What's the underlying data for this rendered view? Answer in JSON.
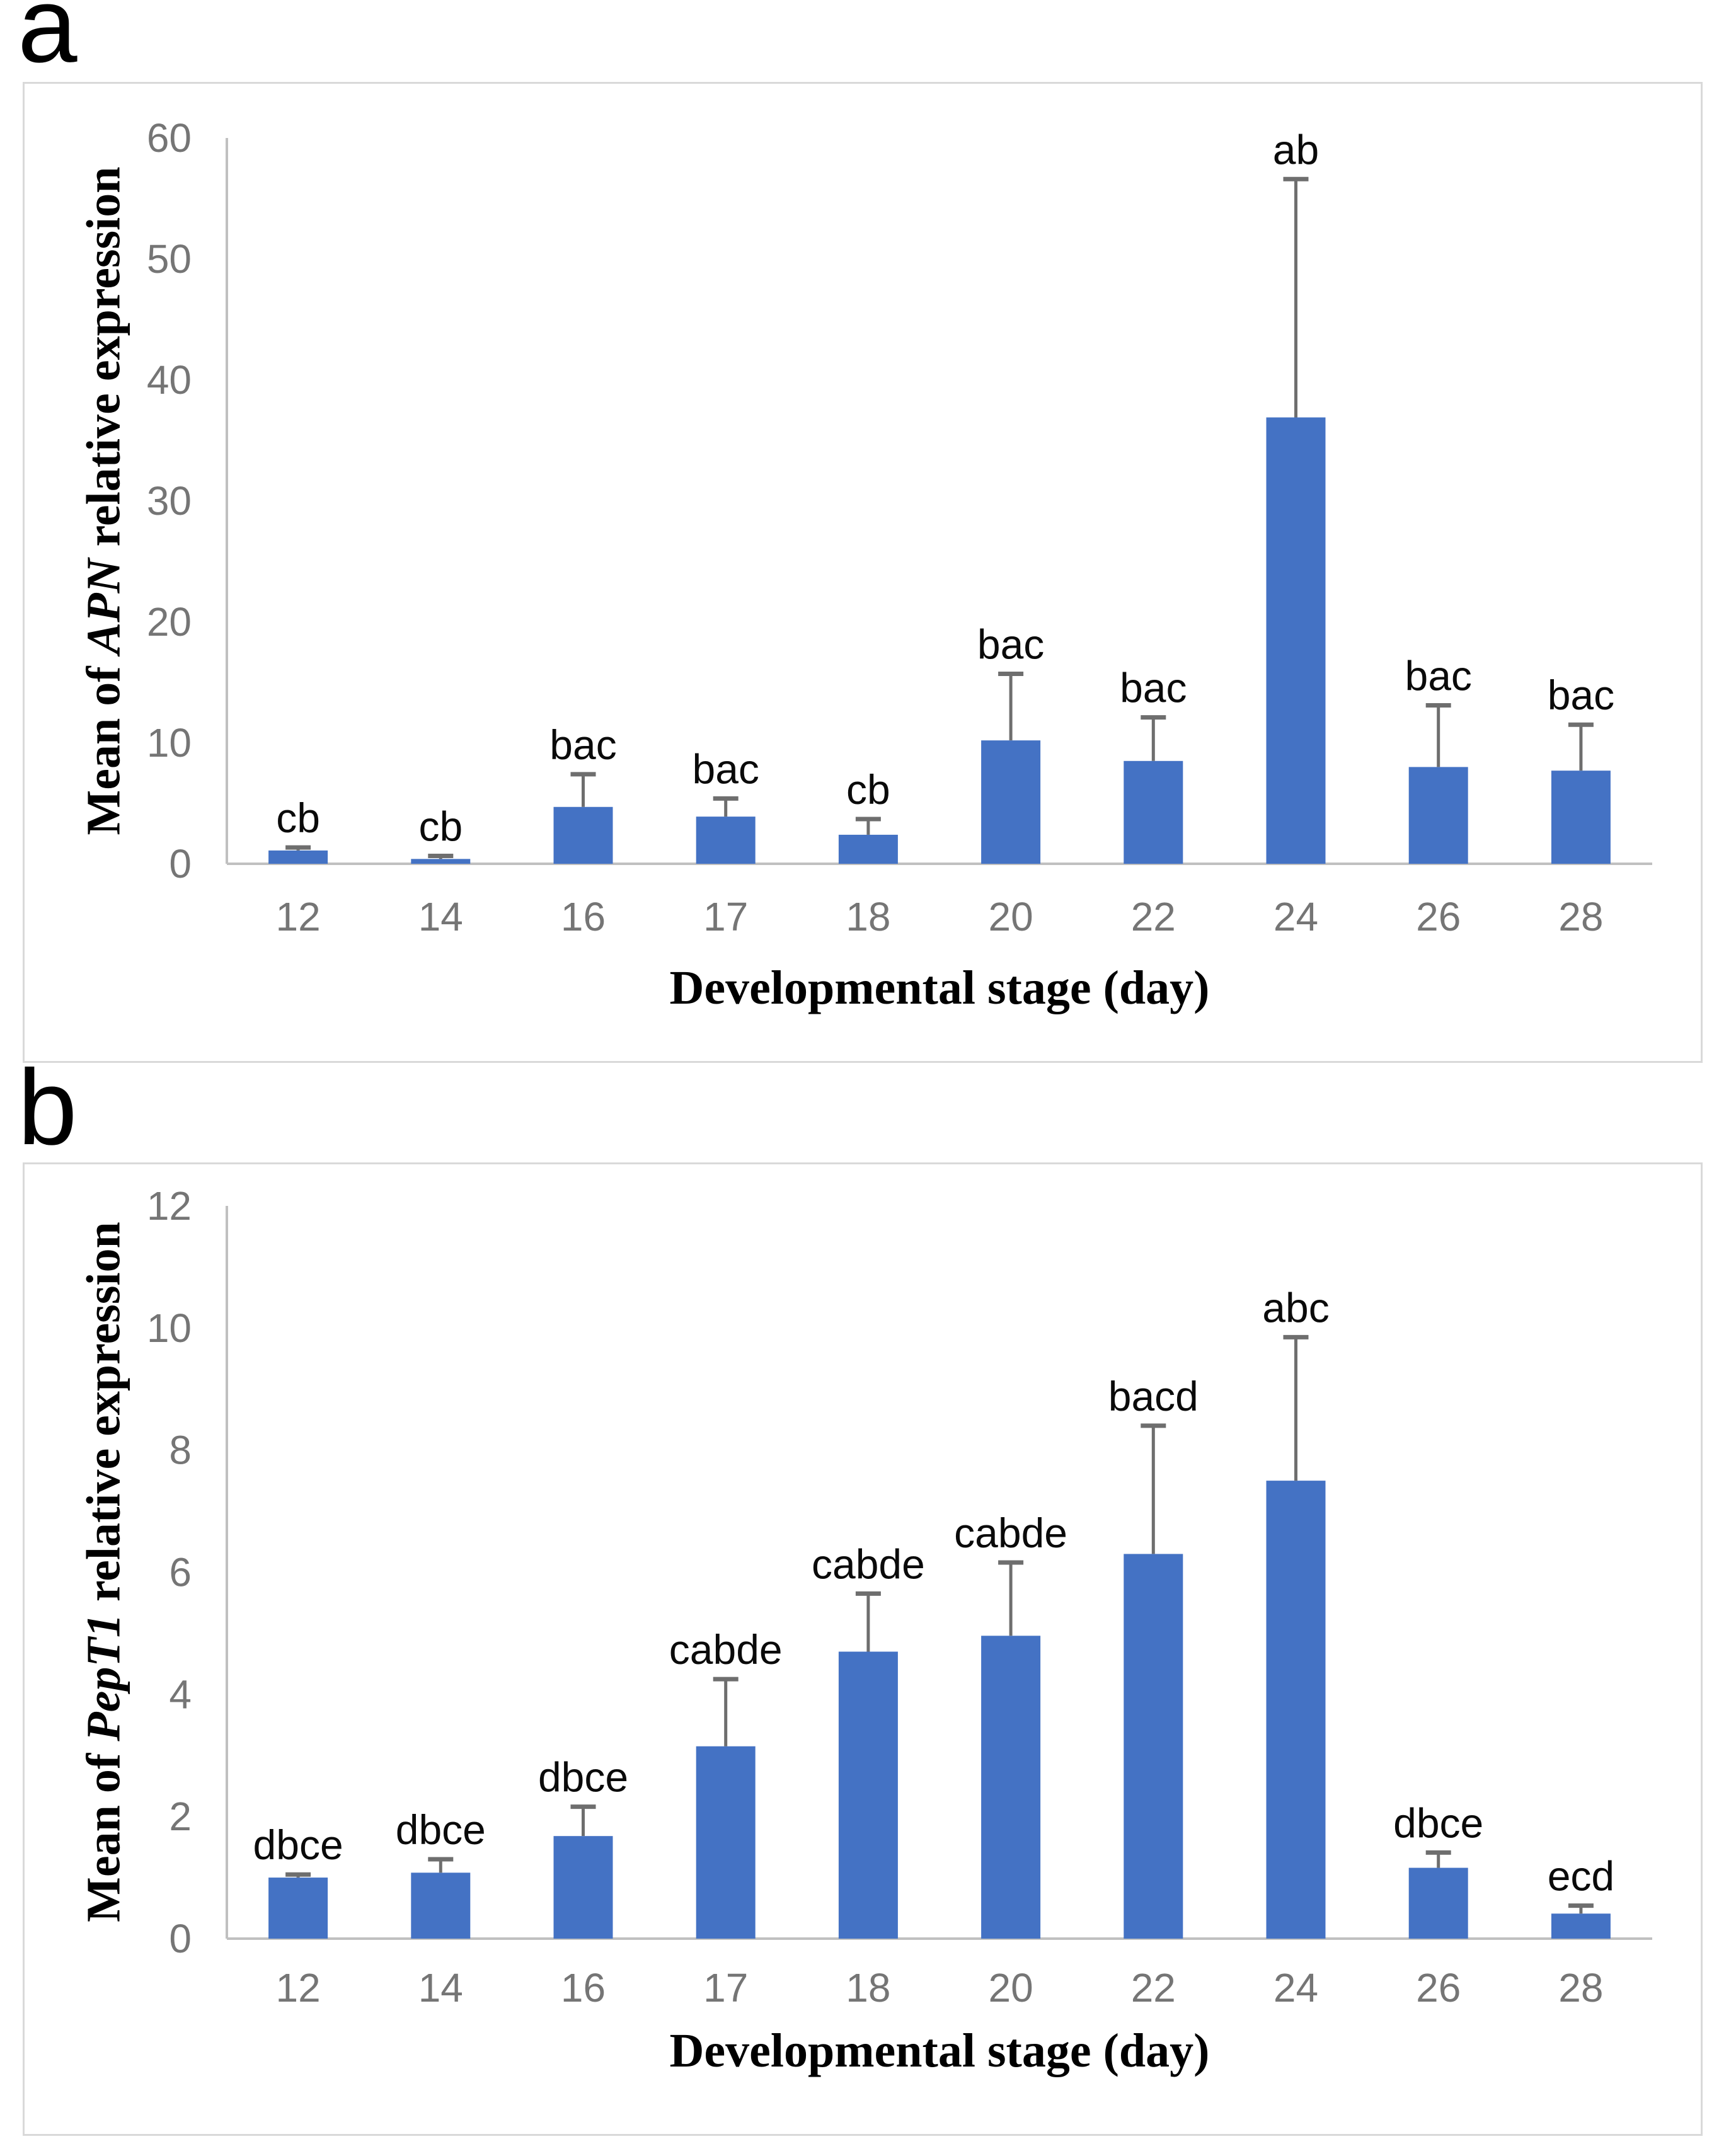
{
  "figure": {
    "panels": [
      {
        "label": "a",
        "ylabel": {
          "prefix": "Mean of ",
          "gene": "APN",
          "suffix": " relative expression"
        },
        "xlabel": "Developmental stage (day)"
      },
      {
        "label": "b",
        "ylabel": {
          "prefix": "Mean of ",
          "gene": "PepT1",
          "suffix": " relative expression"
        },
        "xlabel": "Developmental stage (day)"
      }
    ]
  },
  "chart_data": [
    {
      "type": "bar",
      "panel": "a",
      "title": "",
      "xlabel": "Developmental stage (day)",
      "ylabel": "Mean of APN relative expression",
      "categories": [
        "12",
        "14",
        "16",
        "17",
        "18",
        "20",
        "22",
        "24",
        "26",
        "28"
      ],
      "values": [
        1.1,
        0.4,
        4.7,
        3.9,
        2.4,
        10.2,
        8.5,
        36.9,
        8.0,
        7.7
      ],
      "errors_upper": [
        0.25,
        0.25,
        2.7,
        1.5,
        1.3,
        5.5,
        3.6,
        19.7,
        5.1,
        3.8
      ],
      "sig_labels": [
        "cb",
        "cb",
        "bac",
        "bac",
        "cb",
        "bac",
        "bac",
        "ab",
        "bac",
        "bac"
      ],
      "yticks": [
        0,
        10,
        20,
        30,
        40,
        50,
        60
      ],
      "ylim": [
        0,
        60
      ],
      "grid": false,
      "legend_position": "none",
      "bar_color": "#4472C4"
    },
    {
      "type": "bar",
      "panel": "b",
      "title": "",
      "xlabel": "Developmental stage (day)",
      "ylabel": "Mean of PepT1 relative expression",
      "categories": [
        "12",
        "14",
        "16",
        "17",
        "18",
        "20",
        "22",
        "24",
        "26",
        "28"
      ],
      "values": [
        1.0,
        1.08,
        1.68,
        3.15,
        4.7,
        4.96,
        6.3,
        7.5,
        1.16,
        0.41
      ],
      "errors_upper": [
        0.05,
        0.22,
        0.48,
        1.1,
        0.95,
        1.2,
        2.1,
        2.35,
        0.25,
        0.13
      ],
      "sig_labels": [
        "dbce",
        "dbce",
        "dbce",
        "cabde",
        "cabde",
        "cabde",
        "bacd",
        "abc",
        "dbce",
        "ecd"
      ],
      "yticks": [
        0,
        2,
        4,
        6,
        8,
        10,
        12
      ],
      "ylim": [
        0,
        12
      ],
      "grid": false,
      "legend_position": "none",
      "bar_color": "#4472C4"
    }
  ],
  "colors": {
    "bar": "#4472C4",
    "error_bar": "#6e6e6e",
    "axis_line": "#c0c0c0",
    "tick_text": "#757575",
    "sig_text": "#0a0a0a",
    "panel_border": "#d9d9d9",
    "background": "#ffffff"
  }
}
